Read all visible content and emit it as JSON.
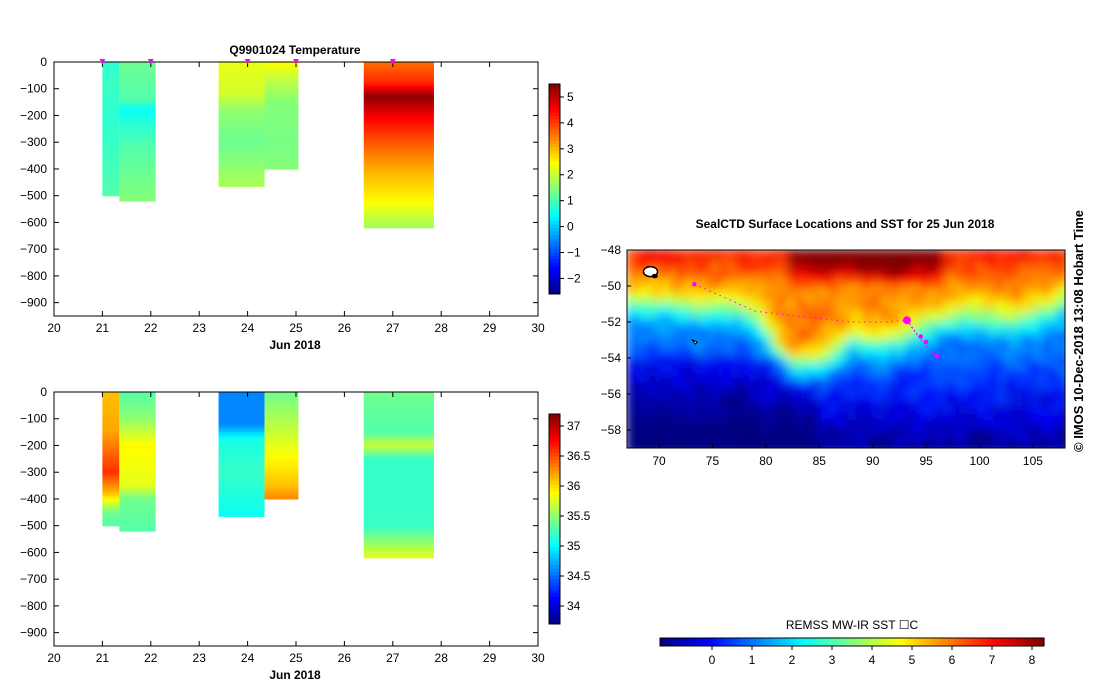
{
  "colors": {
    "jet": [
      "#00007f",
      "#0000ff",
      "#007fff",
      "#00ffff",
      "#7fff7f",
      "#ffff00",
      "#ff7f00",
      "#ff0000",
      "#7f0000"
    ],
    "marker": "#ff00ff",
    "axis": "#000000"
  },
  "side_label": "© IMOS 10-Dec-2018 13:08 Hobart Time",
  "chart_data": [
    {
      "id": "temperature",
      "type": "heatmap",
      "title": "Q9901024  Temperature",
      "xlabel": "Jun 2018",
      "xlim": [
        20,
        30
      ],
      "ylim": [
        -950,
        0
      ],
      "xticks": [
        20,
        21,
        22,
        23,
        24,
        25,
        26,
        27,
        28,
        29,
        30
      ],
      "xtick_labels": [
        "20",
        "21",
        "22",
        "23",
        "24",
        "25",
        "26",
        "27",
        "28",
        "29",
        "30"
      ],
      "yticks": [
        0,
        -100,
        -200,
        -300,
        -400,
        -500,
        -600,
        -700,
        -800,
        -900
      ],
      "ytick_labels": [
        "0",
        "−100",
        "−200",
        "−300",
        "−400",
        "−500",
        "−600",
        "−700",
        "−800",
        "−900"
      ],
      "colorbar": {
        "min": -2.6,
        "max": 5.5,
        "ticks": [
          -2,
          -1,
          0,
          1,
          2,
          3,
          4,
          5
        ],
        "tick_labels": [
          "−2",
          "−1",
          "0",
          "1",
          "2",
          "3",
          "4",
          "5"
        ]
      },
      "markers": [
        21,
        22,
        24,
        25,
        27
      ],
      "profiles": [
        {
          "x0": 21.0,
          "x1": 21.35,
          "bottom": -500,
          "stops": [
            [
              0,
              0.8
            ],
            [
              -80,
              0.9
            ],
            [
              -200,
              0.8
            ],
            [
              -320,
              0.9
            ],
            [
              -420,
              1.0
            ],
            [
              -500,
              1.1
            ]
          ]
        },
        {
          "x0": 21.35,
          "x1": 22.1,
          "bottom": -520,
          "stops": [
            [
              0,
              1.3
            ],
            [
              -140,
              1.1
            ],
            [
              -180,
              0.5
            ],
            [
              -240,
              0.8
            ],
            [
              -320,
              1.1
            ],
            [
              -420,
              1.3
            ],
            [
              -520,
              1.5
            ]
          ]
        },
        {
          "x0": 23.4,
          "x1": 24.35,
          "bottom": -465,
          "stops": [
            [
              0,
              2.3
            ],
            [
              -120,
              2.1
            ],
            [
              -180,
              1.6
            ],
            [
              -300,
              1.3
            ],
            [
              -400,
              1.6
            ],
            [
              -465,
              1.8
            ]
          ]
        },
        {
          "x0": 24.35,
          "x1": 25.05,
          "bottom": -400,
          "stops": [
            [
              0,
              2.5
            ],
            [
              -60,
              2.0
            ],
            [
              -150,
              1.5
            ],
            [
              -300,
              1.4
            ],
            [
              -400,
              1.5
            ]
          ]
        },
        {
          "x0": 26.4,
          "x1": 27.85,
          "bottom": -620,
          "stops": [
            [
              0,
              3.6
            ],
            [
              -80,
              4.2
            ],
            [
              -130,
              5.4
            ],
            [
              -200,
              4.6
            ],
            [
              -300,
              3.8
            ],
            [
              -420,
              3.0
            ],
            [
              -520,
              2.5
            ],
            [
              -620,
              1.7
            ]
          ]
        }
      ]
    },
    {
      "id": "salinity",
      "type": "heatmap",
      "title": "",
      "xlabel": "Jun 2018",
      "xlim": [
        20,
        30
      ],
      "ylim": [
        -950,
        0
      ],
      "xticks": [
        20,
        21,
        22,
        23,
        24,
        25,
        26,
        27,
        28,
        29,
        30
      ],
      "xtick_labels": [
        "20",
        "21",
        "22",
        "23",
        "24",
        "25",
        "26",
        "27",
        "28",
        "29",
        "30"
      ],
      "yticks": [
        0,
        -100,
        -200,
        -300,
        -400,
        -500,
        -600,
        -700,
        -800,
        -900
      ],
      "ytick_labels": [
        "0",
        "−100",
        "−200",
        "−300",
        "−400",
        "−500",
        "−600",
        "−700",
        "−800",
        "−900"
      ],
      "colorbar": {
        "min": 33.7,
        "max": 37.2,
        "ticks": [
          34,
          34.5,
          35,
          35.5,
          36,
          36.5,
          37
        ],
        "tick_labels": [
          "34",
          "34.5",
          "35",
          "35.5",
          "36",
          "36.5",
          "37"
        ]
      },
      "markers": [],
      "profiles": [
        {
          "x0": 21.0,
          "x1": 21.35,
          "bottom": -500,
          "stops": [
            [
              0,
              36.1
            ],
            [
              -150,
              36.2
            ],
            [
              -300,
              36.6
            ],
            [
              -380,
              36.1
            ],
            [
              -450,
              35.4
            ],
            [
              -500,
              35.3
            ]
          ]
        },
        {
          "x0": 21.35,
          "x1": 22.1,
          "bottom": -520,
          "stops": [
            [
              0,
              35.3
            ],
            [
              -100,
              35.5
            ],
            [
              -200,
              35.9
            ],
            [
              -350,
              35.8
            ],
            [
              -400,
              35.4
            ],
            [
              -520,
              35.3
            ]
          ]
        },
        {
          "x0": 23.4,
          "x1": 24.35,
          "bottom": -465,
          "stops": [
            [
              0,
              34.6
            ],
            [
              -120,
              34.6
            ],
            [
              -180,
              35.1
            ],
            [
              -300,
              35.2
            ],
            [
              -465,
              35.05
            ]
          ]
        },
        {
          "x0": 24.35,
          "x1": 25.05,
          "bottom": -400,
          "stops": [
            [
              0,
              35.4
            ],
            [
              -100,
              35.6
            ],
            [
              -250,
              35.9
            ],
            [
              -350,
              36.1
            ],
            [
              -400,
              36.3
            ]
          ]
        },
        {
          "x0": 26.4,
          "x1": 27.85,
          "bottom": -620,
          "stops": [
            [
              0,
              35.4
            ],
            [
              -150,
              35.3
            ],
            [
              -200,
              35.7
            ],
            [
              -250,
              35.2
            ],
            [
              -500,
              35.2
            ],
            [
              -580,
              35.6
            ],
            [
              -620,
              35.8
            ]
          ]
        }
      ]
    },
    {
      "id": "sst-map",
      "type": "heatmap",
      "title": "SealCTD Surface Locations and SST for 25 Jun 2018",
      "xlim": [
        67,
        108
      ],
      "ylim": [
        -59,
        -48
      ],
      "xticks": [
        70,
        75,
        80,
        85,
        90,
        95,
        100,
        105
      ],
      "xtick_labels": [
        "70",
        "75",
        "80",
        "85",
        "90",
        "95",
        "100",
        "105"
      ],
      "yticks": [
        -48,
        -50,
        -52,
        -54,
        -56,
        -58
      ],
      "ytick_labels": [
        "−48",
        "−50",
        "−52",
        "−54",
        "−56",
        "−58"
      ],
      "colorbar": {
        "label": "REMSS MW-IR SST ☐C",
        "min": -1.3,
        "max": 8.3,
        "ticks": [
          0,
          1,
          2,
          3,
          4,
          5,
          6,
          7,
          8
        ],
        "tick_labels": [
          "0",
          "1",
          "2",
          "3",
          "4",
          "5",
          "6",
          "7",
          "8"
        ]
      },
      "track": [
        [
          73.3,
          -49.9
        ],
        [
          76,
          -50.6
        ],
        [
          79,
          -51.4
        ],
        [
          82,
          -51.6
        ],
        [
          85,
          -51.8
        ],
        [
          88,
          -52.0
        ],
        [
          91,
          -52.0
        ],
        [
          93.2,
          -51.9
        ]
      ],
      "track_tail": [
        [
          93.2,
          -51.9
        ],
        [
          94.4,
          -52.9
        ],
        [
          95.3,
          -53.5
        ],
        [
          96.0,
          -54.0
        ]
      ],
      "surface_points": [
        [
          73.3,
          -49.9
        ],
        [
          94.5,
          -52.8
        ],
        [
          95.0,
          -53.1
        ],
        [
          96.0,
          -53.9
        ]
      ],
      "current_position": [
        93.2,
        -51.9
      ]
    }
  ]
}
